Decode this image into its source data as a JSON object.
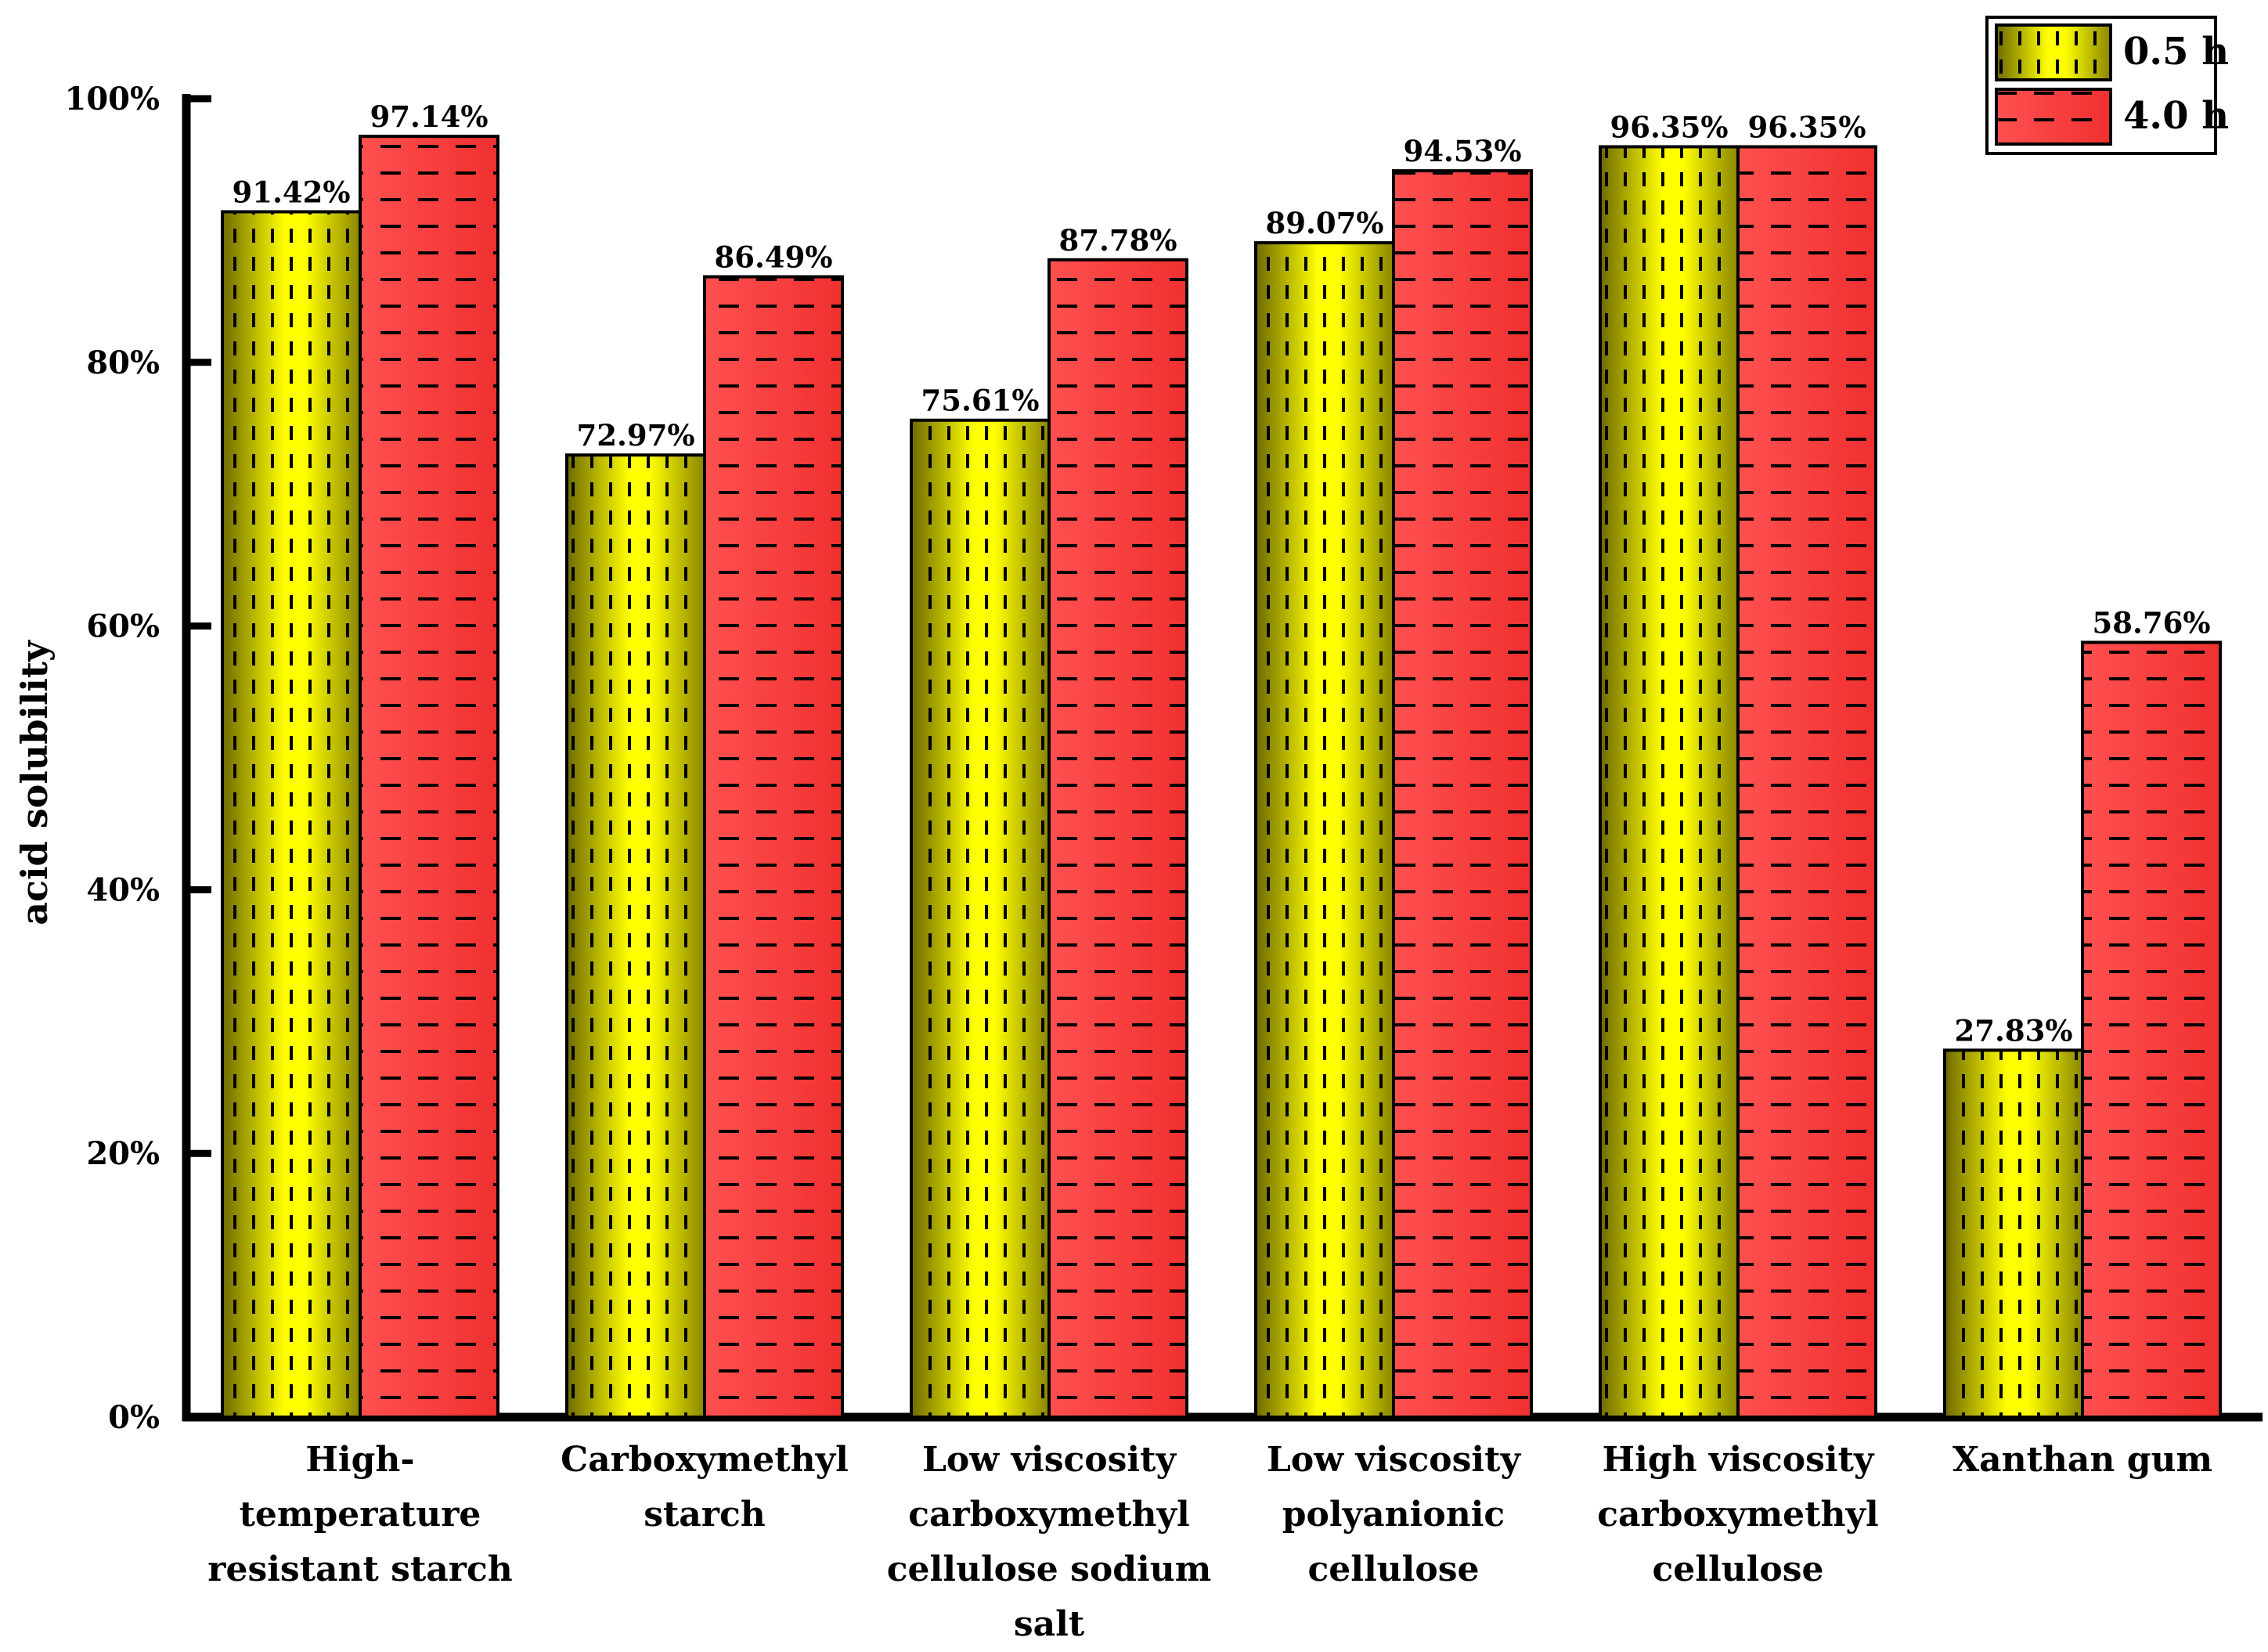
{
  "chart_data": {
    "type": "bar",
    "title": "",
    "xlabel": "",
    "ylabel": "acid solubility",
    "ylim": [
      0,
      100
    ],
    "yticks": [
      "0%",
      "20%",
      "40%",
      "60%",
      "80%",
      "100%"
    ],
    "categories": [
      [
        "High-temperature",
        "resistant starch"
      ],
      [
        "Carboxymethyl",
        "starch"
      ],
      [
        "Low viscosity",
        "carboxymethyl",
        "cellulose sodium",
        "salt"
      ],
      [
        "Low viscosity",
        "polyanionic",
        "cellulose"
      ],
      [
        "High viscosity",
        "carboxymethyl",
        "cellulose"
      ],
      [
        "Xanthan gum"
      ]
    ],
    "series": [
      {
        "name": "0.5 h",
        "values": [
          91.42,
          72.97,
          75.61,
          89.07,
          96.35,
          27.83
        ],
        "labels": [
          "91.42%",
          "72.97%",
          "75.61%",
          "89.07%",
          "96.35%",
          "27.83%"
        ],
        "color": "#f2f200",
        "edge_color": "#6e6a00",
        "pattern": "vertical-dashes"
      },
      {
        "name": "4.0 h",
        "values": [
          97.14,
          86.49,
          87.78,
          94.53,
          96.35,
          58.76
        ],
        "labels": [
          "97.14%",
          "86.49%",
          "87.78%",
          "94.53%",
          "96.35%",
          "58.76%"
        ],
        "color": "#f23c3c",
        "edge_color": "#b01818",
        "pattern": "horizontal-dashes"
      }
    ],
    "legend_position": "top-right"
  }
}
